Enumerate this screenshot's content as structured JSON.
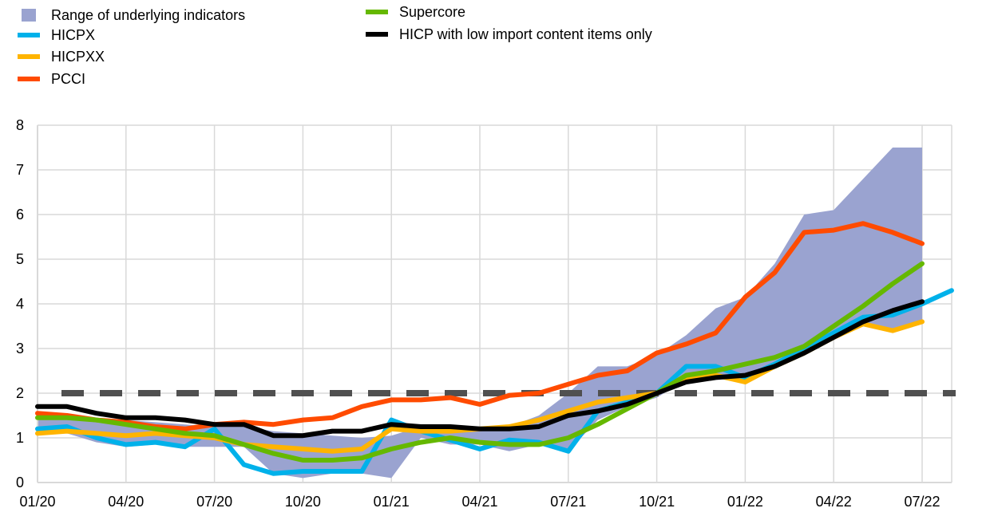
{
  "chart_data": {
    "type": "line",
    "title": "",
    "xlabel": "",
    "ylabel": "",
    "ylim": [
      0,
      8
    ],
    "yticks": [
      "0",
      "1",
      "2",
      "3",
      "4",
      "5",
      "6",
      "7",
      "8"
    ],
    "xticks": [
      "01/20",
      "04/20",
      "07/20",
      "10/20",
      "01/21",
      "04/21",
      "07/21",
      "10/21",
      "01/22",
      "04/22",
      "07/22"
    ],
    "x_start": "01/20",
    "grid": true,
    "legend_position": "top-left",
    "reference_line": {
      "value": 2,
      "style": "dashed",
      "color": "#505050"
    },
    "range": {
      "name": "Range of underlying indicators",
      "color": "#9aa3d0",
      "upper": [
        1.5,
        1.45,
        1.4,
        1.4,
        1.35,
        1.3,
        1.25,
        1.25,
        1.15,
        1.1,
        1.05,
        1.0,
        1.05,
        1.25,
        1.25,
        1.25,
        1.25,
        1.5,
        2.0,
        2.6,
        2.6,
        2.85,
        3.3,
        3.9,
        4.15,
        4.9,
        6.0,
        6.1,
        6.8,
        7.5,
        7.5
      ],
      "lower": [
        1.1,
        1.1,
        0.9,
        0.8,
        0.85,
        0.8,
        0.8,
        0.8,
        0.2,
        0.1,
        0.2,
        0.2,
        0.1,
        1.0,
        0.85,
        0.85,
        0.7,
        0.85,
        0.7,
        1.4,
        1.7,
        1.9,
        2.3,
        2.4,
        2.3,
        2.6,
        2.9,
        3.2,
        3.5,
        3.35,
        3.55
      ]
    },
    "series": [
      {
        "name": "HICPX",
        "color": "#00b1ea",
        "values": [
          1.2,
          1.25,
          1.0,
          0.85,
          0.9,
          0.8,
          1.2,
          0.4,
          0.2,
          0.25,
          0.25,
          0.25,
          1.4,
          1.15,
          0.95,
          0.75,
          0.95,
          0.9,
          0.7,
          1.6,
          1.8,
          2.0,
          2.6,
          2.6,
          2.35,
          2.65,
          3.0,
          3.35,
          3.7,
          3.75,
          4.0,
          4.3
        ]
      },
      {
        "name": "HICPXX",
        "color": "#ffb400",
        "values": [
          1.1,
          1.15,
          1.1,
          1.05,
          1.1,
          1.05,
          1.0,
          0.85,
          0.8,
          0.75,
          0.7,
          0.75,
          1.2,
          1.15,
          1.15,
          1.2,
          1.25,
          1.4,
          1.6,
          1.8,
          1.9,
          2.0,
          2.3,
          2.4,
          2.25,
          2.6,
          2.9,
          3.25,
          3.55,
          3.4,
          3.6
        ]
      },
      {
        "name": "PCCI",
        "color": "#ff4b00",
        "values": [
          1.55,
          1.5,
          1.4,
          1.35,
          1.25,
          1.2,
          1.3,
          1.35,
          1.3,
          1.4,
          1.45,
          1.7,
          1.85,
          1.85,
          1.9,
          1.75,
          1.95,
          2.0,
          2.2,
          2.4,
          2.5,
          2.9,
          3.1,
          3.35,
          4.15,
          4.7,
          5.6,
          5.65,
          5.8,
          5.6,
          5.35
        ]
      },
      {
        "name": "Supercore",
        "color": "#65b800",
        "values": [
          1.45,
          1.45,
          1.4,
          1.3,
          1.2,
          1.1,
          1.05,
          0.85,
          0.65,
          0.5,
          0.5,
          0.55,
          0.75,
          0.9,
          1.0,
          0.9,
          0.85,
          0.85,
          1.0,
          1.3,
          1.65,
          2.0,
          2.4,
          2.5,
          2.65,
          2.8,
          3.05,
          3.5,
          3.95,
          4.45,
          4.9
        ]
      },
      {
        "name": "HICP with low import content items only",
        "color": "#000000",
        "values": [
          1.7,
          1.7,
          1.55,
          1.45,
          1.45,
          1.4,
          1.3,
          1.3,
          1.05,
          1.05,
          1.15,
          1.15,
          1.3,
          1.25,
          1.25,
          1.2,
          1.2,
          1.25,
          1.5,
          1.6,
          1.75,
          2.0,
          2.25,
          2.35,
          2.4,
          2.6,
          2.9,
          3.25,
          3.6,
          3.85,
          4.05
        ]
      }
    ]
  }
}
